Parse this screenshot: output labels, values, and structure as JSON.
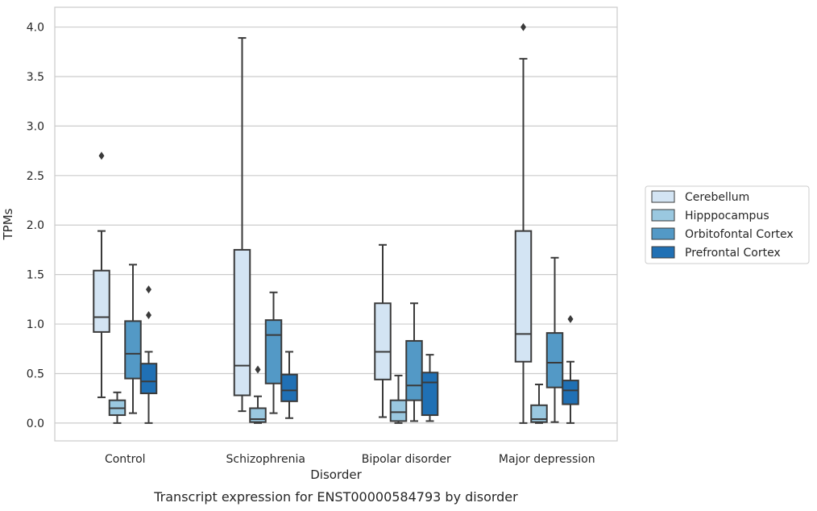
{
  "caption": "Transcript expression for ENST00000584793 by disorder",
  "chart_data": {
    "type": "box",
    "xlabel": "Disorder",
    "ylabel": "TPMs",
    "ylim": [
      -0.18,
      4.2
    ],
    "yticks": [
      "0.0",
      "0.5",
      "1.0",
      "1.5",
      "2.0",
      "2.5",
      "3.0",
      "3.5",
      "4.0"
    ],
    "grid": true,
    "legend_position": "right",
    "categories": [
      "Control",
      "Schizophrenia",
      "Bipolar disorder",
      "Major depression"
    ],
    "series": [
      {
        "name": "Cerebellum",
        "color": "#d3e4f3",
        "boxes": [
          {
            "whislo": 0.26,
            "q1": 0.92,
            "med": 1.07,
            "q3": 1.54,
            "whishi": 1.94,
            "fliers": [
              2.7
            ]
          },
          {
            "whislo": 0.12,
            "q1": 0.28,
            "med": 0.58,
            "q3": 1.75,
            "whishi": 3.89,
            "fliers": []
          },
          {
            "whislo": 0.06,
            "q1": 0.44,
            "med": 0.72,
            "q3": 1.21,
            "whishi": 1.8,
            "fliers": []
          },
          {
            "whislo": 0.0,
            "q1": 0.62,
            "med": 0.9,
            "q3": 1.94,
            "whishi": 3.68,
            "fliers": [
              4.0
            ]
          }
        ]
      },
      {
        "name": "Hipppocampus",
        "color": "#9ac8e0",
        "boxes": [
          {
            "whislo": 0.0,
            "q1": 0.08,
            "med": 0.15,
            "q3": 0.23,
            "whishi": 0.31,
            "fliers": []
          },
          {
            "whislo": 0.0,
            "q1": 0.01,
            "med": 0.04,
            "q3": 0.15,
            "whishi": 0.27,
            "fliers": [
              0.54
            ]
          },
          {
            "whislo": 0.0,
            "q1": 0.02,
            "med": 0.11,
            "q3": 0.23,
            "whishi": 0.48,
            "fliers": []
          },
          {
            "whislo": 0.0,
            "q1": 0.01,
            "med": 0.04,
            "q3": 0.18,
            "whishi": 0.39,
            "fliers": []
          }
        ]
      },
      {
        "name": "Orbitofontal Cortex",
        "color": "#5399c6",
        "boxes": [
          {
            "whislo": 0.1,
            "q1": 0.45,
            "med": 0.7,
            "q3": 1.03,
            "whishi": 1.6,
            "fliers": []
          },
          {
            "whislo": 0.1,
            "q1": 0.4,
            "med": 0.89,
            "q3": 1.04,
            "whishi": 1.32,
            "fliers": []
          },
          {
            "whislo": 0.02,
            "q1": 0.23,
            "med": 0.38,
            "q3": 0.83,
            "whishi": 1.21,
            "fliers": []
          },
          {
            "whislo": 0.01,
            "q1": 0.36,
            "med": 0.61,
            "q3": 0.91,
            "whishi": 1.67,
            "fliers": []
          }
        ]
      },
      {
        "name": "Prefrontal Cortex",
        "color": "#2070b4",
        "boxes": [
          {
            "whislo": 0.0,
            "q1": 0.3,
            "med": 0.42,
            "q3": 0.6,
            "whishi": 0.72,
            "fliers": [
              1.09,
              1.35
            ]
          },
          {
            "whislo": 0.05,
            "q1": 0.22,
            "med": 0.33,
            "q3": 0.49,
            "whishi": 0.72,
            "fliers": []
          },
          {
            "whislo": 0.02,
            "q1": 0.08,
            "med": 0.41,
            "q3": 0.51,
            "whishi": 0.69,
            "fliers": []
          },
          {
            "whislo": 0.0,
            "q1": 0.19,
            "med": 0.33,
            "q3": 0.43,
            "whishi": 0.62,
            "fliers": [
              1.05
            ]
          }
        ]
      }
    ]
  }
}
